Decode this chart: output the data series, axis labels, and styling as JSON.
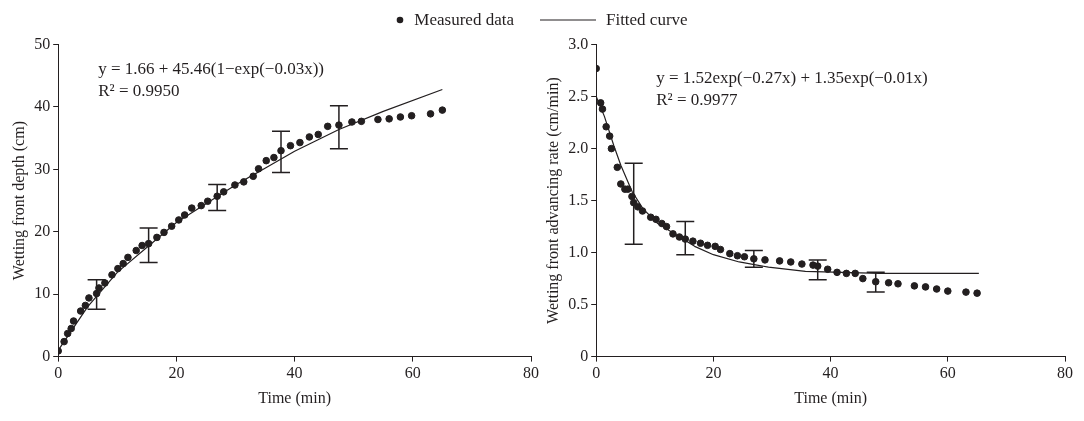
{
  "chart_data": [
    {
      "type": "scatter",
      "xlabel": "Time (min)",
      "ylabel": "Wetting front depth (cm)",
      "xlim": [
        0,
        80
      ],
      "xticks": [
        0,
        20,
        40,
        60,
        80
      ],
      "ylim": [
        0,
        50
      ],
      "yticks": [
        0,
        10,
        20,
        30,
        40,
        50
      ],
      "legend": "top",
      "grid": false,
      "annotations": [
        "y = 1.66 + 45.46(1−exp(−0.03x))",
        "R² = 0.9950"
      ],
      "series": [
        {
          "name": "Measured data",
          "marker": "circle",
          "color": "#231f20",
          "x": [
            0,
            1,
            1.6,
            2.2,
            2.6,
            3.8,
            4.6,
            5.2,
            6.5,
            6.9,
            7.9,
            9.1,
            10.1,
            11,
            11.8,
            13.2,
            14.2,
            15.3,
            16.7,
            17.9,
            19.2,
            20.4,
            21.4,
            22.6,
            24.2,
            25.3,
            26.9,
            28,
            29.9,
            31.4,
            33,
            33.9,
            35.2,
            36.5,
            37.7,
            39.3,
            40.9,
            42.5,
            44,
            45.6,
            47.5,
            49.7,
            51.3,
            54.1,
            56,
            57.9,
            59.8,
            63,
            65
          ],
          "values": [
            0.9,
            2.4,
            3.7,
            4.5,
            5.7,
            7.3,
            8.2,
            9.4,
            10.1,
            11,
            11.8,
            13.1,
            14.1,
            14.9,
            15.9,
            17,
            17.8,
            18.1,
            19.1,
            19.9,
            20.9,
            21.9,
            22.7,
            23.8,
            24.2,
            24.9,
            25.7,
            26.4,
            27.5,
            28,
            28.9,
            30.1,
            31.4,
            31.9,
            33,
            33.8,
            34.3,
            35.2,
            35.6,
            36.9,
            37.1,
            37.6,
            37.7,
            38,
            38.1,
            38.4,
            38.6,
            38.9,
            39.5
          ],
          "errors": [
            null,
            null,
            null,
            null,
            null,
            null,
            null,
            null,
            [
              7.6,
              12.3
            ],
            null,
            null,
            null,
            null,
            null,
            null,
            null,
            null,
            [
              15.1,
              20.6
            ],
            null,
            null,
            null,
            null,
            null,
            null,
            null,
            null,
            [
              23.4,
              27.6
            ],
            null,
            null,
            null,
            null,
            null,
            null,
            null,
            [
              29.5,
              36.1
            ],
            null,
            null,
            null,
            null,
            null,
            [
              33.3,
              40.2
            ],
            null,
            null,
            null,
            null,
            null,
            null,
            null,
            null
          ]
        },
        {
          "name": "Fitted curve",
          "type": "line",
          "marker": "none",
          "line_style": "solid",
          "color": "#231f20",
          "x": [
            0,
            5,
            10,
            20,
            30,
            35,
            40,
            47.5,
            55,
            65
          ],
          "values": [
            1,
            8,
            13.5,
            21.5,
            27.5,
            30.2,
            32.9,
            36.4,
            39.3,
            42.8
          ]
        }
      ]
    },
    {
      "type": "scatter",
      "xlabel": "Time (min)",
      "ylabel": "Wetting front advancing rate (cm/min)",
      "xlim": [
        0,
        80
      ],
      "xticks": [
        0,
        20,
        40,
        60,
        80
      ],
      "ylim": [
        0,
        3
      ],
      "yticks": [
        0,
        {
          "value": 0.5,
          "label": "0.5"
        },
        {
          "value": 1,
          "label": "1.0"
        },
        {
          "value": 1.5,
          "label": "1.5"
        },
        {
          "value": 2,
          "label": "2.0"
        },
        {
          "value": 2.5,
          "label": "2.5"
        },
        {
          "value": 3,
          "label": "3.0"
        }
      ],
      "grid": false,
      "annotations": [
        "y = 1.52exp(−0.27x) + 1.35exp(−0.01x)",
        "R² = 0.9977"
      ],
      "series": [
        {
          "marker": "circle",
          "color": "#231f20",
          "x": [
            0,
            0.76,
            1.07,
            1.7,
            2.3,
            2.6,
            3.6,
            4.2,
            4.9,
            5.4,
            6.1,
            6.4,
            7.1,
            7.9,
            9.3,
            10.2,
            11.2,
            12,
            13.1,
            14.2,
            15.2,
            16.5,
            17.8,
            19,
            20.3,
            21.2,
            22.8,
            24.1,
            25.3,
            26.9,
            28.8,
            31.3,
            33.2,
            35.1,
            37,
            37.8,
            39.5,
            41.1,
            42.7,
            44.2,
            45.5,
            47.7,
            49.9,
            51.5,
            54.3,
            56.2,
            58.1,
            60,
            63.1,
            65
          ],
          "values": [
            2.77,
            2.44,
            2.38,
            2.21,
            2.12,
            2,
            1.82,
            1.66,
            1.61,
            1.61,
            1.54,
            1.48,
            1.44,
            1.4,
            1.34,
            1.32,
            1.28,
            1.25,
            1.18,
            1.15,
            1.13,
            1.11,
            1.09,
            1.07,
            1.06,
            1.03,
            0.99,
            0.97,
            0.96,
            0.94,
            0.93,
            0.92,
            0.91,
            0.89,
            0.88,
            0.87,
            0.84,
            0.81,
            0.8,
            0.8,
            0.75,
            0.72,
            0.71,
            0.7,
            0.68,
            0.67,
            0.65,
            0.63,
            0.62,
            0.61
          ],
          "errors": [
            null,
            null,
            null,
            null,
            null,
            null,
            null,
            null,
            null,
            null,
            null,
            [
              1.08,
              1.86
            ],
            null,
            null,
            null,
            null,
            null,
            null,
            null,
            null,
            [
              0.98,
              1.3
            ],
            null,
            null,
            null,
            null,
            null,
            null,
            null,
            null,
            [
              0.86,
              1.02
            ],
            null,
            null,
            null,
            null,
            null,
            [
              0.74,
              0.93
            ],
            null,
            null,
            null,
            null,
            null,
            [
              0.62,
              0.81
            ],
            null,
            null,
            null,
            null,
            null,
            null,
            null,
            null
          ]
        },
        {
          "type": "line",
          "marker": "none",
          "line_style": "solid",
          "color": "#231f20",
          "x": [
            0,
            1.4,
            3,
            4.2,
            6.1,
            8,
            10.5,
            13.7,
            16.8,
            20,
            24.4,
            29.4,
            35.7,
            42,
            48.3,
            65.3
          ],
          "values": [
            2.5,
            2.31,
            2.03,
            1.84,
            1.59,
            1.42,
            1.28,
            1.17,
            1.06,
            0.98,
            0.91,
            0.86,
            0.82,
            0.81,
            0.8,
            0.8
          ]
        }
      ]
    }
  ]
}
